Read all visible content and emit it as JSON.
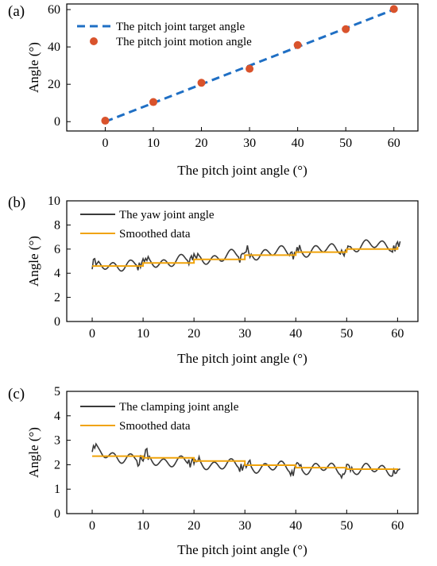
{
  "chart_data": [
    {
      "panel": "(a)",
      "type": "line",
      "xlabel": "The pitch joint angle (°)",
      "ylabel": "Angle (°)",
      "xlim": [
        -8,
        65
      ],
      "ylim": [
        -5,
        63
      ],
      "xticks": [
        0,
        10,
        20,
        30,
        40,
        50,
        60
      ],
      "yticks": [
        0,
        20,
        40,
        60
      ],
      "legend_position": "top-left",
      "series": [
        {
          "name": "The pitch joint target angle",
          "style": "dashed-line",
          "color": "#1f6fc4",
          "x": [
            0,
            60
          ],
          "y": [
            0,
            60
          ]
        },
        {
          "name": "The pitch joint motion angle",
          "style": "scatter",
          "color": "#d9532c",
          "x": [
            0,
            10,
            20,
            30,
            40,
            50,
            60
          ],
          "y": [
            0.5,
            10.5,
            20.8,
            28.3,
            41,
            49.5,
            60.3
          ]
        }
      ]
    },
    {
      "panel": "(b)",
      "type": "line",
      "xlabel": "The pitch joint angle (°)",
      "ylabel": "Angle (°)",
      "xlim": [
        -5,
        64
      ],
      "ylim": [
        0,
        10
      ],
      "xticks": [
        0,
        10,
        20,
        30,
        40,
        50,
        60
      ],
      "yticks": [
        0,
        2,
        4,
        6,
        8,
        10
      ],
      "legend_position": "top-left",
      "series": [
        {
          "name": "The yaw joint angle",
          "style": "noisy-line",
          "color": "#3a3a3a",
          "x": [
            0,
            5,
            10,
            15,
            20,
            25,
            30,
            35,
            40,
            45,
            50,
            55,
            60
          ],
          "y": [
            4.5,
            4.7,
            4.8,
            5.0,
            5.2,
            5.3,
            5.6,
            5.7,
            5.8,
            5.9,
            6.1,
            6.3,
            6.4
          ]
        },
        {
          "name": "Smoothed data",
          "style": "line",
          "color": "#f0a30a",
          "x": [
            0,
            10,
            20,
            30,
            40,
            50,
            60
          ],
          "y": [
            4.6,
            4.85,
            5.15,
            5.5,
            5.75,
            6.0,
            6.2
          ]
        }
      ]
    },
    {
      "panel": "(c)",
      "type": "line",
      "xlabel": "The pitch joint angle (°)",
      "ylabel": "Angle (°)",
      "xlim": [
        -5,
        64
      ],
      "ylim": [
        0,
        5
      ],
      "xticks": [
        0,
        10,
        20,
        30,
        40,
        50,
        60
      ],
      "yticks": [
        0,
        1,
        2,
        3,
        4,
        5
      ],
      "legend_position": "top-left",
      "series": [
        {
          "name": "The clamping joint angle",
          "style": "noisy-line",
          "color": "#3a3a3a",
          "x": [
            0,
            5,
            10,
            15,
            20,
            25,
            30,
            35,
            40,
            45,
            50,
            55,
            60
          ],
          "y": [
            2.5,
            2.35,
            2.2,
            2.15,
            2.1,
            2.0,
            1.95,
            1.9,
            1.85,
            1.85,
            1.8,
            1.8,
            1.8
          ]
        },
        {
          "name": "Smoothed data",
          "style": "line",
          "color": "#f0a30a",
          "x": [
            0,
            10,
            20,
            30,
            40,
            50,
            60
          ],
          "y": [
            2.35,
            2.28,
            2.15,
            1.98,
            1.88,
            1.82,
            1.8
          ]
        }
      ]
    }
  ]
}
